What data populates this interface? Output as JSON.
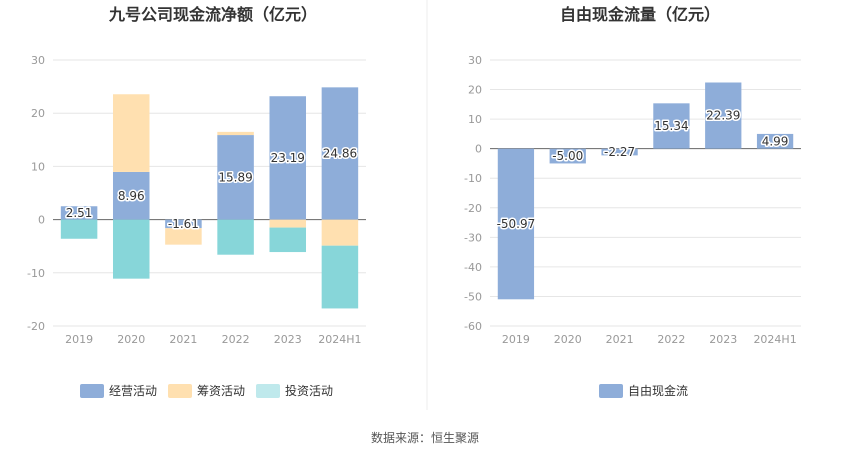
{
  "source_text": "数据来源：恒生聚源",
  "colors": {
    "operating": "#8eadd9",
    "financing": "#ffe0b0",
    "investing": "#87d6d9",
    "investing_legend": "#bfe9ec",
    "fcf": "#8eadd9",
    "grid": "#e6e6e6",
    "axis": "#666666"
  },
  "chart_data": [
    {
      "type": "bar",
      "stacked": true,
      "title": "九号公司现金流净额（亿元）",
      "categories": [
        "2019",
        "2020",
        "2021",
        "2022",
        "2023",
        "2024H1"
      ],
      "ylim": [
        -20,
        30
      ],
      "yticks": [
        30,
        20,
        10,
        0,
        -10,
        -20
      ],
      "grid": true,
      "legend_position": "bottom",
      "series": [
        {
          "name": "经营活动",
          "key": "operating",
          "values": [
            2.51,
            8.96,
            -1.61,
            15.89,
            23.19,
            24.86
          ]
        },
        {
          "name": "筹资活动",
          "key": "financing",
          "values": [
            0,
            14.6,
            -3.1,
            0.6,
            -1.5,
            -4.9
          ]
        },
        {
          "name": "投资活动",
          "key": "investing",
          "values": [
            -3.6,
            -11.1,
            0,
            -6.6,
            -4.6,
            -11.8
          ]
        }
      ],
      "data_labels": [
        "2.51",
        "8.96",
        "-1.61",
        "15.89",
        "23.19",
        "24.86"
      ]
    },
    {
      "type": "bar",
      "title": "自由现金流量（亿元）",
      "categories": [
        "2019",
        "2020",
        "2021",
        "2022",
        "2023",
        "2024H1"
      ],
      "ylim": [
        -60,
        30
      ],
      "yticks": [
        30,
        20,
        10,
        0,
        -10,
        -20,
        -30,
        -40,
        -50,
        -60
      ],
      "grid": true,
      "legend_position": "bottom",
      "series": [
        {
          "name": "自由现金流",
          "key": "fcf",
          "values": [
            -50.97,
            -5.0,
            -2.27,
            15.34,
            22.39,
            4.99
          ]
        }
      ],
      "data_labels": [
        "-50.97",
        "-5.00",
        "-2.27",
        "15.34",
        "22.39",
        "4.99"
      ]
    }
  ]
}
